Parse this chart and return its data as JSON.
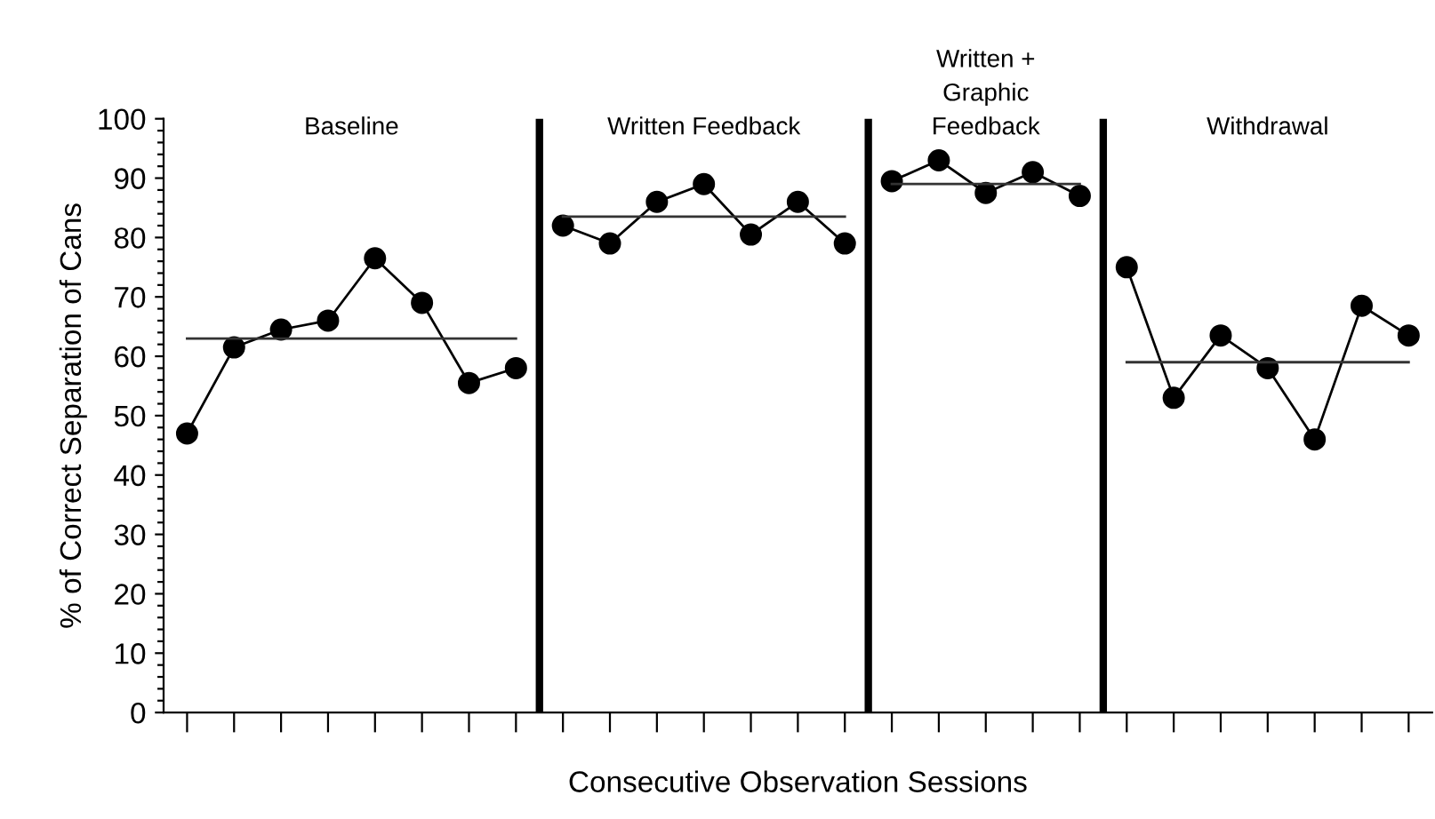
{
  "chart_data": {
    "type": "line",
    "xlabel": "Consecutive Observation Sessions",
    "ylabel": "% of Correct Separation of Cans",
    "categories": [
      null,
      null,
      null,
      null,
      null,
      null,
      null,
      null,
      null,
      null,
      null,
      null,
      null,
      null,
      null,
      null,
      null,
      null,
      null,
      null,
      null,
      null,
      null,
      null,
      null,
      null,
      null
    ],
    "ylim": [
      0,
      100
    ],
    "yticks": [
      0,
      {
        "value": 2,
        "label": null
      },
      {
        "value": 4,
        "label": null
      },
      {
        "value": 6,
        "label": null
      },
      {
        "value": 8,
        "label": null
      },
      10,
      {
        "value": 12,
        "label": null
      },
      {
        "value": 14,
        "label": null
      },
      {
        "value": 16,
        "label": null
      },
      {
        "value": 18,
        "label": null
      },
      20,
      {
        "value": 22,
        "label": null
      },
      {
        "value": 24,
        "label": null
      },
      {
        "value": 26,
        "label": null
      },
      {
        "value": 28,
        "label": null
      },
      30,
      {
        "value": 32,
        "label": null
      },
      {
        "value": 34,
        "label": null
      },
      {
        "value": 36,
        "label": null
      },
      {
        "value": 38,
        "label": null
      },
      40,
      {
        "value": 42,
        "label": null
      },
      {
        "value": 44,
        "label": null
      },
      {
        "value": 46,
        "label": null
      },
      {
        "value": 48,
        "label": null
      },
      50,
      {
        "value": 52,
        "label": null
      },
      {
        "value": 54,
        "label": null
      },
      {
        "value": 56,
        "label": null
      },
      {
        "value": 58,
        "label": null
      },
      60,
      {
        "value": 62,
        "label": null
      },
      {
        "value": 64,
        "label": null
      },
      {
        "value": 66,
        "label": null
      },
      {
        "value": 68,
        "label": null
      },
      70,
      {
        "value": 72,
        "label": null
      },
      {
        "value": 74,
        "label": null
      },
      {
        "value": 76,
        "label": null
      },
      {
        "value": 78,
        "label": null
      },
      80,
      {
        "value": 82,
        "label": null
      },
      {
        "value": 84,
        "label": null
      },
      {
        "value": 86,
        "label": null
      },
      {
        "value": 88,
        "label": null
      },
      90,
      {
        "value": 92,
        "label": null
      },
      {
        "value": 94,
        "label": null
      },
      {
        "value": 96,
        "label": null
      },
      {
        "value": 98,
        "label": null
      },
      100
    ],
    "tick_labels": "y",
    "series": [
      {
        "color": "#000000",
        "marker": "circle",
        "values": [
          47,
          61.5,
          64.5,
          66,
          76.5,
          69,
          55.5,
          58,
          null,
          null,
          null,
          null,
          null,
          null,
          null,
          null,
          null,
          null,
          null,
          null,
          null,
          null,
          null,
          null,
          null,
          null,
          null
        ]
      },
      {
        "color": "#000000",
        "marker": "circle",
        "values": [
          null,
          null,
          null,
          null,
          null,
          null,
          null,
          null,
          82,
          79,
          86,
          89,
          80.5,
          86,
          79,
          null,
          null,
          null,
          null,
          null,
          null,
          null,
          null,
          null,
          null,
          null,
          null
        ]
      },
      {
        "color": "#000000",
        "marker": "circle",
        "values": [
          null,
          null,
          null,
          null,
          null,
          null,
          null,
          null,
          null,
          null,
          null,
          null,
          null,
          null,
          null,
          89.5,
          93,
          87.5,
          91,
          87,
          null,
          null,
          null,
          null,
          null,
          null,
          null
        ]
      },
      {
        "color": "#000000",
        "marker": "circle",
        "values": [
          null,
          null,
          null,
          null,
          null,
          null,
          null,
          null,
          null,
          null,
          null,
          null,
          null,
          null,
          null,
          null,
          null,
          null,
          null,
          null,
          75,
          53,
          63.5,
          58,
          46,
          68.5,
          63.5
        ]
      },
      {
        "color": "#333333",
        "marker": "none",
        "values": [
          63,
          63,
          63,
          63,
          63,
          63,
          63,
          63,
          null,
          null,
          null,
          null,
          null,
          null,
          null,
          null,
          null,
          null,
          null,
          null,
          null,
          null,
          null,
          null,
          null,
          null,
          null
        ]
      },
      {
        "color": "#333333",
        "marker": "none",
        "values": [
          null,
          null,
          null,
          null,
          null,
          null,
          null,
          null,
          83.5,
          83.5,
          83.5,
          83.5,
          83.5,
          83.5,
          83.5,
          null,
          null,
          null,
          null,
          null,
          null,
          null,
          null,
          null,
          null,
          null,
          null
        ]
      },
      {
        "color": "#333333",
        "marker": "none",
        "values": [
          null,
          null,
          null,
          null,
          null,
          null,
          null,
          null,
          null,
          null,
          null,
          null,
          null,
          null,
          null,
          89,
          89,
          89,
          89,
          89,
          null,
          null,
          null,
          null,
          null,
          null,
          null
        ]
      },
      {
        "color": "#333333",
        "marker": "none",
        "values": [
          null,
          null,
          null,
          null,
          null,
          null,
          null,
          null,
          null,
          null,
          null,
          null,
          null,
          null,
          null,
          null,
          null,
          null,
          null,
          null,
          59,
          59,
          59,
          59,
          59,
          59,
          59
        ]
      }
    ],
    "annotations": [
      "Baseline",
      "Written Feedback",
      "Written +\nGraphic\nFeedback",
      "Withdrawal"
    ]
  }
}
